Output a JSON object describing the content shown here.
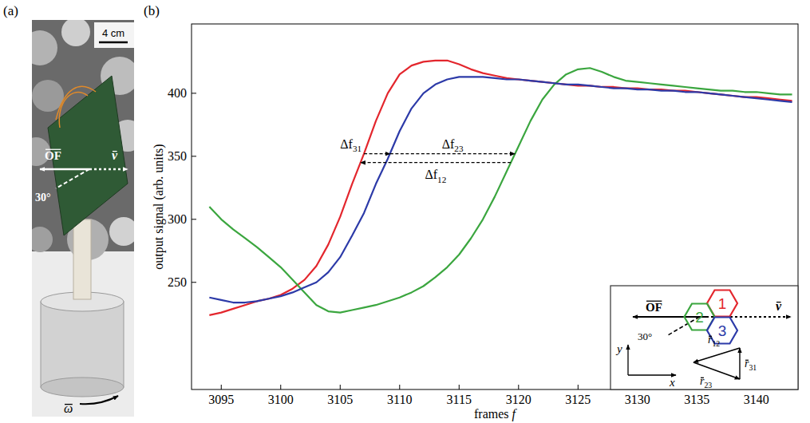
{
  "panel_labels": [
    "(a)",
    "(b)"
  ],
  "photo": {
    "scale_bar": "4 cm",
    "of": "OF",
    "v": "v",
    "angle": "30°",
    "omega": "ω"
  },
  "chart_data": {
    "type": "line",
    "x_label": "frames f",
    "y_label": "output signal (arb. units)",
    "x": [
      3094,
      3095,
      3096,
      3097,
      3098,
      3099,
      3100,
      3101,
      3102,
      3103,
      3104,
      3105,
      3106,
      3107,
      3108,
      3109,
      3110,
      3111,
      3112,
      3113,
      3114,
      3115,
      3116,
      3117,
      3118,
      3119,
      3120,
      3121,
      3122,
      3123,
      3124,
      3125,
      3126,
      3127,
      3128,
      3129,
      3130,
      3131,
      3132,
      3133,
      3134,
      3135,
      3136,
      3137,
      3138,
      3139,
      3140,
      3141,
      3142,
      3143
    ],
    "series": [
      {
        "name": "1",
        "color": "#e3262d",
        "values": [
          224,
          226,
          229,
          232,
          235,
          237,
          240,
          245,
          252,
          263,
          280,
          302,
          328,
          352,
          378,
          400,
          415,
          422,
          425,
          426,
          426,
          423,
          419,
          416,
          414,
          412,
          411,
          410,
          409,
          408,
          407,
          406,
          406,
          405,
          405,
          404,
          404,
          403,
          403,
          402,
          402,
          401,
          400,
          399,
          398,
          397,
          397,
          396,
          395,
          394
        ]
      },
      {
        "name": "2",
        "color": "#3ba63f",
        "values": [
          310,
          300,
          292,
          285,
          278,
          270,
          262,
          252,
          242,
          232,
          227,
          226,
          228,
          230,
          232,
          235,
          238,
          242,
          247,
          254,
          262,
          272,
          285,
          300,
          318,
          338,
          358,
          378,
          395,
          407,
          415,
          419,
          420,
          417,
          413,
          410,
          409,
          408,
          407,
          406,
          405,
          404,
          403,
          402,
          402,
          401,
          401,
          400,
          399,
          399
        ]
      },
      {
        "name": "3",
        "color": "#2c3aa8",
        "values": [
          238,
          236,
          234,
          234,
          235,
          237,
          239,
          242,
          246,
          250,
          258,
          270,
          287,
          305,
          328,
          348,
          370,
          388,
          400,
          407,
          411,
          413,
          413,
          413,
          412,
          411,
          411,
          410,
          409,
          408,
          407,
          407,
          406,
          405,
          404,
          404,
          403,
          403,
          402,
          402,
          401,
          401,
          400,
          399,
          398,
          397,
          396,
          395,
          394,
          393
        ]
      }
    ],
    "xlim": [
      3092.5,
      3143.5
    ],
    "xticks": [
      3095,
      3100,
      3105,
      3110,
      3115,
      3120,
      3125,
      3130,
      3135,
      3140
    ],
    "ylim": [
      165,
      455
    ],
    "yticks": [
      250,
      300,
      350,
      400
    ],
    "grid": false,
    "annotations": [
      {
        "text": "Δf31",
        "x0": 3107,
        "x1": 3109.2,
        "y": 352,
        "position": "left"
      },
      {
        "text": "Δf23",
        "x0": 3109.2,
        "x1": 3119.7,
        "y": 352,
        "position": "above"
      },
      {
        "text": "Δf12",
        "x0": 3119.35,
        "x1": 3106.7,
        "y": 345,
        "position": "below"
      }
    ]
  },
  "inset": {
    "of": "OF",
    "v": "v",
    "angle": "30°",
    "vectors": [
      "r12",
      "r31",
      "r23"
    ],
    "axes": [
      "x",
      "y"
    ]
  }
}
